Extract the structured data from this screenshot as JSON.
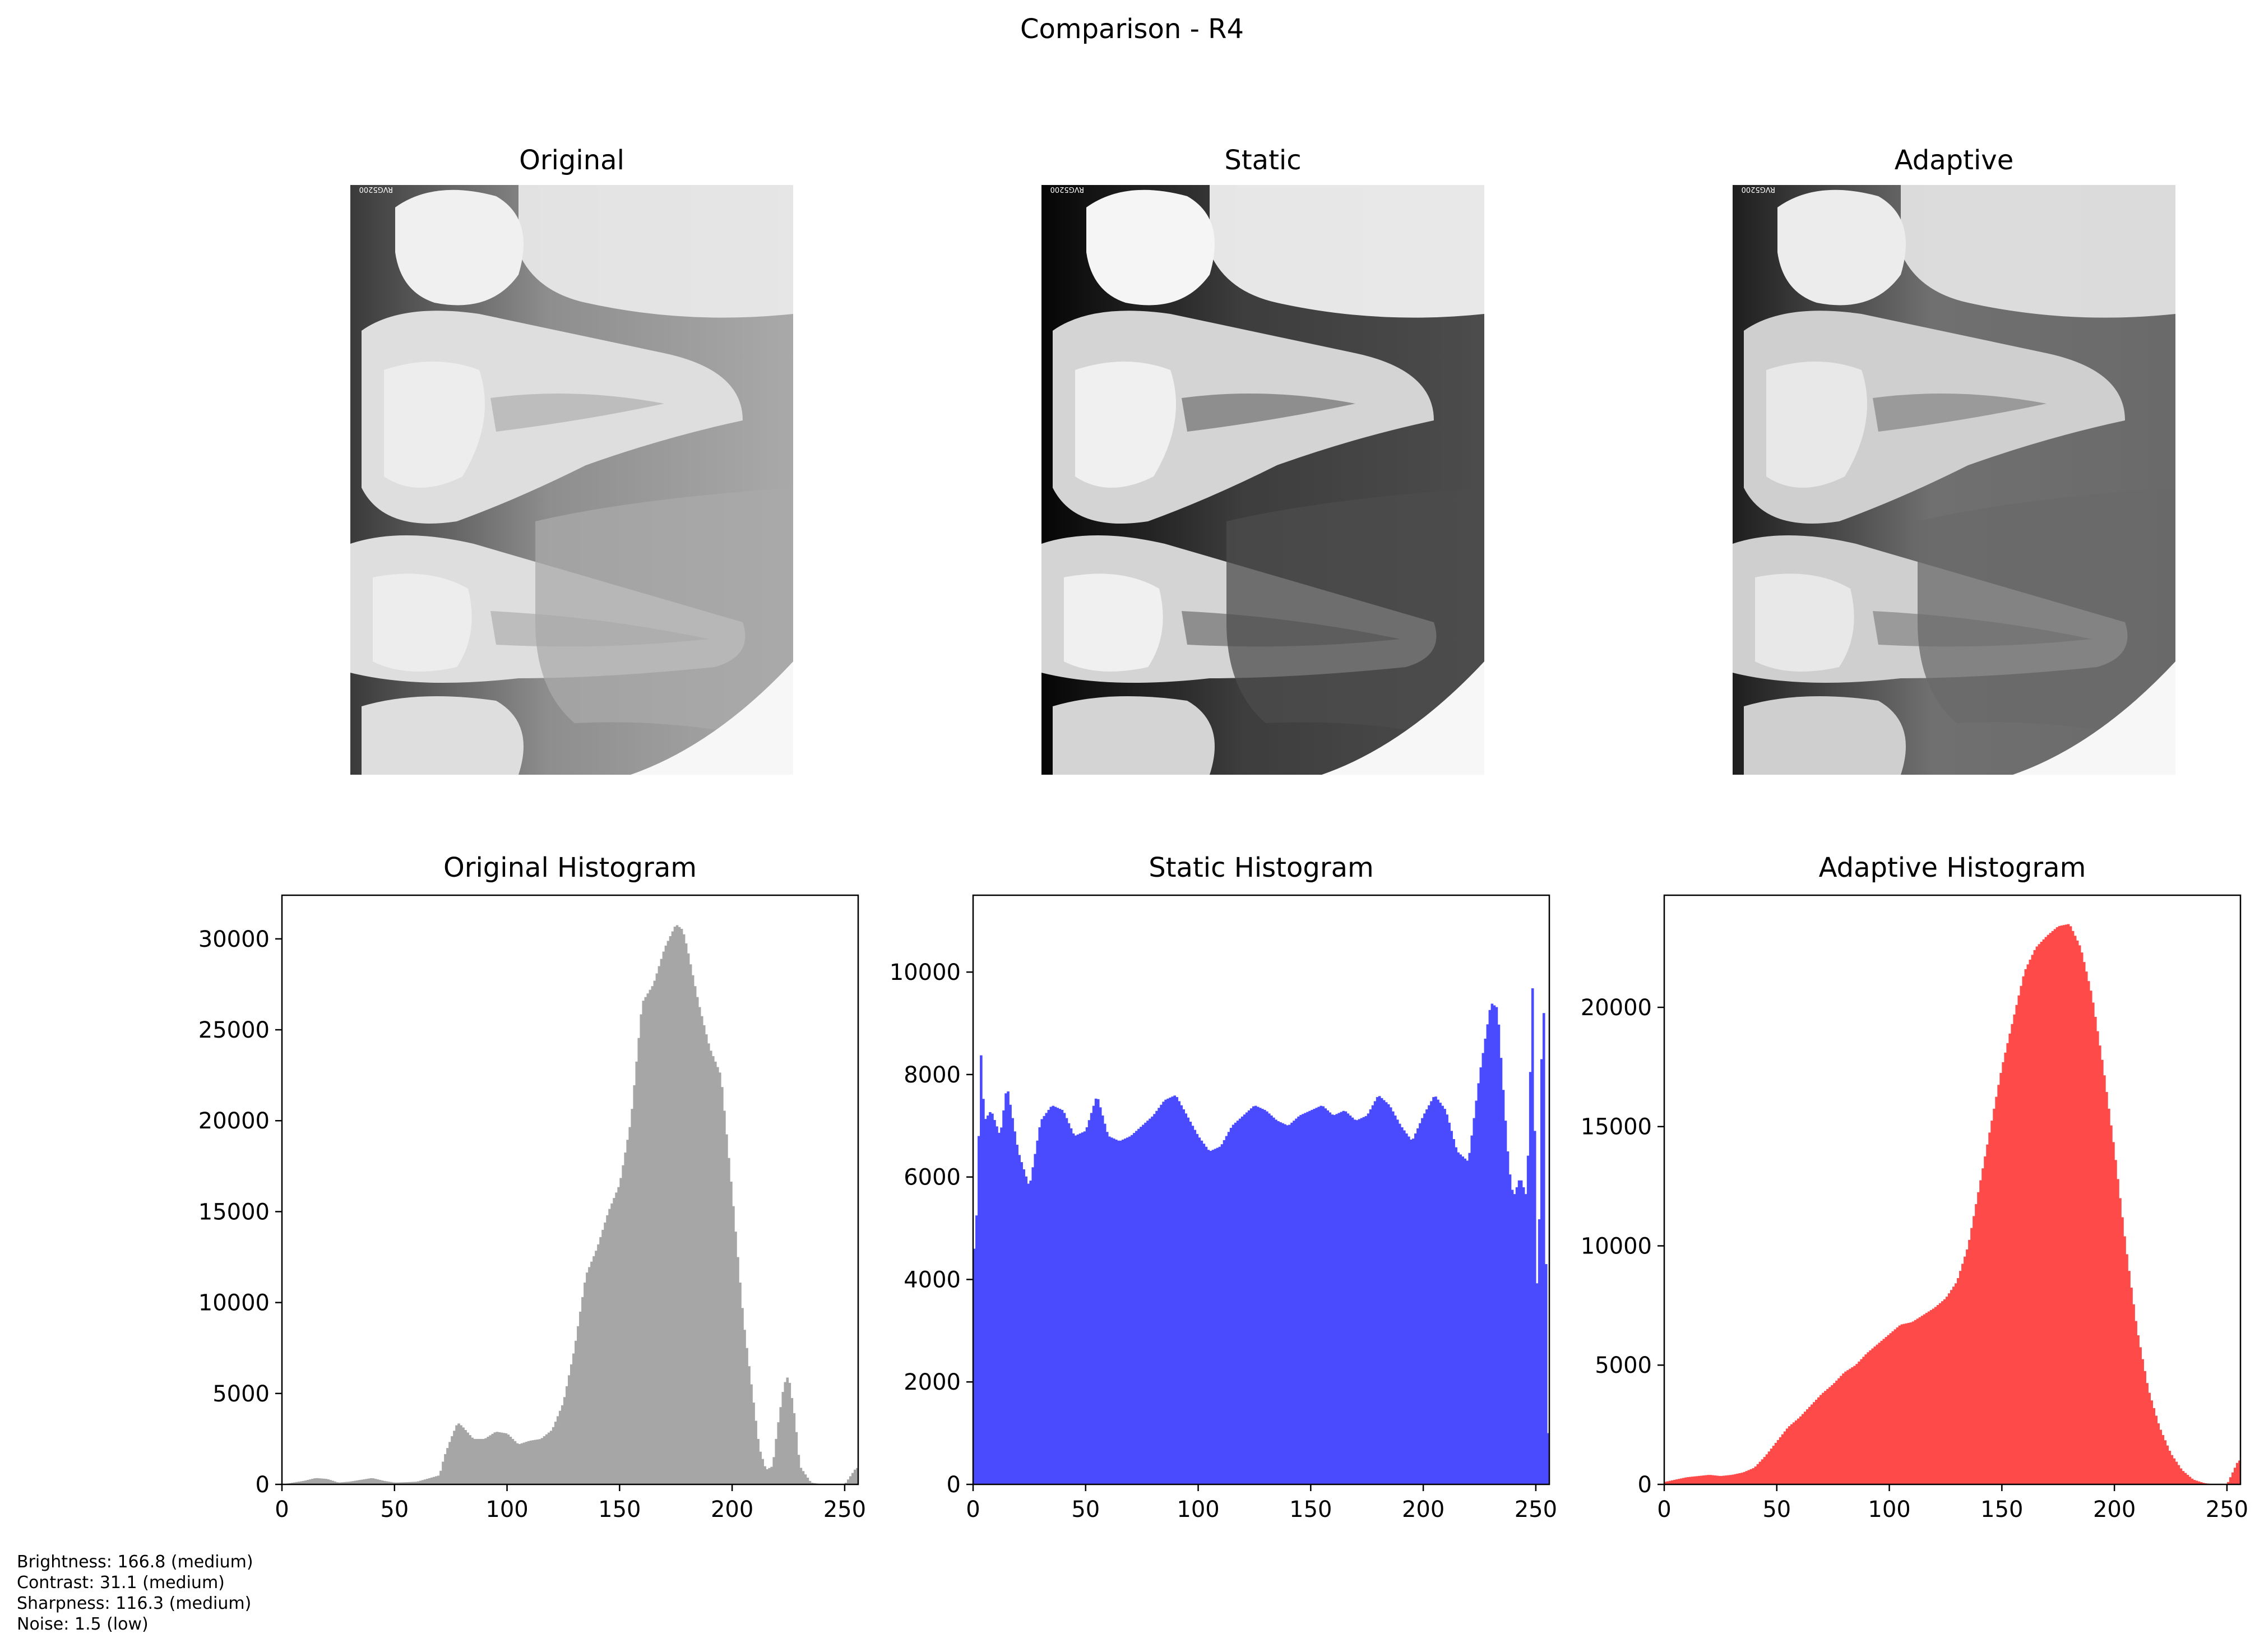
{
  "figure": {
    "title": "Comparison - R4"
  },
  "images": [
    {
      "title": "Original",
      "tone": "original",
      "watermark": "RVG5200"
    },
    {
      "title": "Static",
      "tone": "static",
      "watermark": "RVG5200"
    },
    {
      "title": "Adaptive",
      "tone": "adaptive",
      "watermark": "RVG5200"
    }
  ],
  "metrics": {
    "brightness": "Brightness: 166.8 (medium)",
    "contrast": "Contrast: 31.1 (medium)",
    "sharpness": "Sharpness: 116.3 (medium)",
    "noise": "Noise: 1.5 (low)"
  },
  "chart_data": [
    {
      "type": "bar",
      "title": "Original Histogram",
      "color": "#a6a6a6",
      "xlim": [
        0,
        256
      ],
      "ylim": [
        0,
        32400
      ],
      "xticks": [
        0,
        50,
        100,
        150,
        200,
        250
      ],
      "yticks": [
        0,
        5000,
        10000,
        15000,
        20000,
        25000,
        30000
      ],
      "x": [
        0,
        10,
        15,
        20,
        25,
        30,
        40,
        45,
        50,
        55,
        60,
        70,
        72,
        75,
        78,
        80,
        85,
        90,
        95,
        100,
        105,
        110,
        115,
        120,
        125,
        130,
        135,
        140,
        145,
        150,
        155,
        160,
        165,
        170,
        175,
        178,
        180,
        185,
        190,
        195,
        200,
        205,
        210,
        212,
        215,
        218,
        220,
        223,
        225,
        228,
        230,
        235,
        240,
        250,
        255
      ],
      "values": [
        0,
        200,
        350,
        300,
        100,
        150,
        350,
        200,
        100,
        120,
        150,
        500,
        1500,
        2500,
        3400,
        3200,
        2500,
        2500,
        2900,
        2800,
        2200,
        2400,
        2500,
        3000,
        4500,
        7500,
        11500,
        13000,
        15000,
        16500,
        20000,
        26500,
        27500,
        29500,
        30800,
        30500,
        29500,
        26500,
        24000,
        22500,
        16000,
        9000,
        4000,
        2000,
        800,
        1000,
        3000,
        5500,
        6000,
        3500,
        1000,
        100,
        0,
        0,
        900
      ]
    },
    {
      "type": "bar",
      "title": "Static Histogram",
      "color": "#4a4aff",
      "xlim": [
        0,
        256
      ],
      "ylim": [
        0,
        11500
      ],
      "xticks": [
        0,
        50,
        100,
        150,
        200,
        250
      ],
      "yticks": [
        0,
        2000,
        4000,
        6000,
        8000,
        10000
      ],
      "x": [
        0,
        1,
        2,
        3,
        5,
        8,
        12,
        15,
        20,
        25,
        30,
        35,
        40,
        45,
        50,
        55,
        60,
        65,
        70,
        75,
        80,
        85,
        90,
        95,
        100,
        105,
        110,
        115,
        120,
        125,
        130,
        135,
        140,
        145,
        150,
        155,
        160,
        165,
        170,
        175,
        180,
        185,
        190,
        195,
        200,
        205,
        210,
        215,
        220,
        225,
        230,
        233,
        235,
        238,
        240,
        243,
        246,
        249,
        250,
        252,
        253,
        254,
        255
      ],
      "values": [
        3500,
        5700,
        4800,
        8800,
        7100,
        7300,
        6800,
        7800,
        6500,
        5800,
        7100,
        7400,
        7300,
        6800,
        6900,
        7600,
        6800,
        6700,
        6800,
        7000,
        7200,
        7500,
        7600,
        7200,
        6800,
        6500,
        6600,
        7000,
        7200,
        7400,
        7300,
        7100,
        7000,
        7200,
        7300,
        7400,
        7200,
        7300,
        7100,
        7200,
        7600,
        7400,
        7000,
        6700,
        7200,
        7600,
        7300,
        6500,
        6300,
        8000,
        9400,
        9300,
        8000,
        6200,
        5600,
        6000,
        5600,
        10500,
        3300,
        5800,
        10800,
        7600,
        1000
      ]
    },
    {
      "type": "bar",
      "title": "Adaptive Histogram",
      "color": "#ff4a4a",
      "xlim": [
        0,
        256
      ],
      "ylim": [
        0,
        24700
      ],
      "xticks": [
        0,
        50,
        100,
        150,
        200,
        250
      ],
      "yticks": [
        0,
        5000,
        10000,
        15000,
        20000
      ],
      "x": [
        0,
        5,
        10,
        15,
        20,
        25,
        30,
        35,
        40,
        45,
        50,
        55,
        60,
        65,
        70,
        75,
        80,
        85,
        90,
        95,
        100,
        105,
        110,
        115,
        120,
        125,
        130,
        135,
        140,
        145,
        150,
        155,
        160,
        165,
        170,
        175,
        180,
        185,
        190,
        195,
        200,
        205,
        210,
        215,
        220,
        225,
        230,
        235,
        240,
        245,
        250,
        255
      ],
      "values": [
        100,
        200,
        300,
        350,
        400,
        350,
        400,
        500,
        700,
        1200,
        1800,
        2400,
        2800,
        3300,
        3800,
        4200,
        4700,
        5000,
        5500,
        5900,
        6300,
        6700,
        6800,
        7100,
        7400,
        7800,
        8500,
        10000,
        12500,
        15000,
        17500,
        19500,
        21500,
        22500,
        23000,
        23400,
        23500,
        22500,
        20500,
        17500,
        14000,
        10000,
        6500,
        4000,
        2400,
        1300,
        600,
        200,
        50,
        0,
        0,
        1000
      ]
    }
  ]
}
